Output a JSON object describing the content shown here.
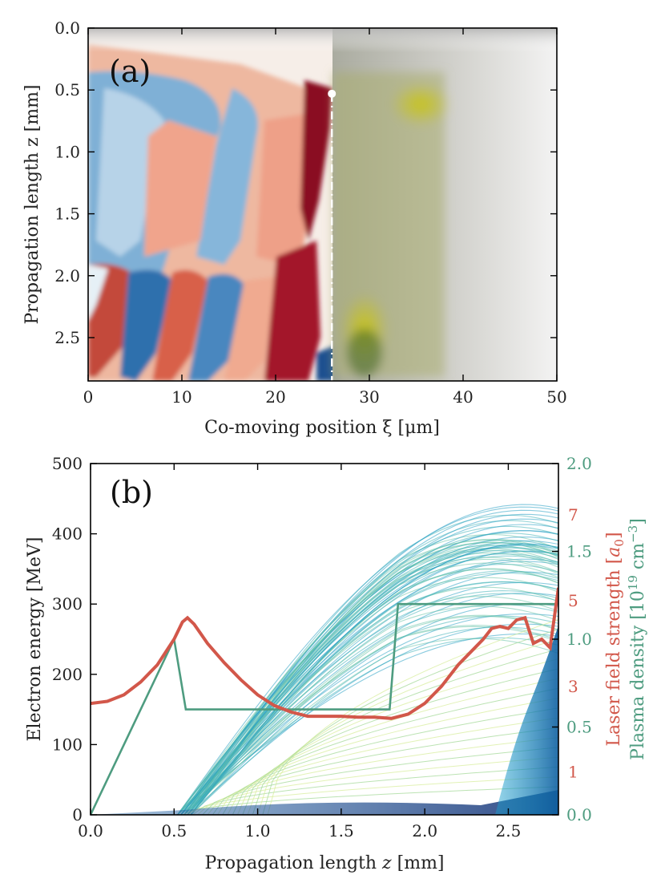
{
  "chart_data": [
    {
      "panel": "(a)",
      "type": "heatmap",
      "xlabel": "Co-moving position ξ [μm]",
      "ylabel": "Propagation length z [mm]",
      "xlim": [
        0,
        50
      ],
      "ylim": [
        2.85,
        0.0
      ],
      "x_ticks": [
        "0",
        "10",
        "20",
        "30",
        "40",
        "50"
      ],
      "y_ticks": [
        "0.0",
        "0.5",
        "1.0",
        "1.5",
        "2.0",
        "2.5"
      ],
      "x_tick_values": [
        0,
        10,
        20,
        30,
        40,
        50
      ],
      "y_tick_values": [
        0.0,
        0.5,
        1.0,
        1.5,
        2.0,
        2.5
      ],
      "injection_marker": {
        "xi": 26,
        "z": 0.53
      },
      "marker_line": {
        "xi": 26,
        "z_from": 0.53,
        "z_to": 2.85
      }
    },
    {
      "panel": "(b)",
      "type": "line",
      "xlabel": "Propagation length z [mm]",
      "ylabel": "Electron energy [MeV]",
      "ylabel_right_laser": "Laser field strength [a0]",
      "ylabel_right_density": "Plasma density [10^19 cm^-3]",
      "xlim": [
        0,
        2.8
      ],
      "ylim": [
        0,
        500
      ],
      "x_ticks": [
        "0.0",
        "0.5",
        "1.0",
        "1.5",
        "2.0",
        "2.5"
      ],
      "x_tick_values": [
        0.0,
        0.5,
        1.0,
        1.5,
        2.0,
        2.5
      ],
      "y_ticks": [
        "0",
        "100",
        "200",
        "300",
        "400",
        "500"
      ],
      "y_tick_values": [
        0,
        100,
        200,
        300,
        400,
        500
      ],
      "density_ticks": [
        "0.0",
        "0.5",
        "1.0",
        "1.5",
        "2.0"
      ],
      "density_tick_values": [
        0.0,
        0.5,
        1.0,
        1.5,
        2.0
      ],
      "density_range": [
        0,
        2.0
      ],
      "laser_ticks": [
        "1",
        "3",
        "5",
        "7"
      ],
      "laser_tick_values": [
        1,
        3,
        5,
        7
      ],
      "laser_range": [
        0,
        8.2
      ],
      "series": [
        {
          "name": "Plasma density",
          "axis": "density",
          "color": "#4e9c80",
          "x": [
            0.0,
            0.5,
            0.57,
            1.79,
            1.84,
            2.8
          ],
          "y": [
            0.0,
            1.0,
            0.6,
            0.6,
            1.2,
            1.2
          ]
        },
        {
          "name": "Laser field strength",
          "axis": "laser",
          "color": "#d2574a",
          "x": [
            0.0,
            0.1,
            0.2,
            0.3,
            0.4,
            0.5,
            0.55,
            0.58,
            0.62,
            0.7,
            0.8,
            0.9,
            1.0,
            1.1,
            1.2,
            1.3,
            1.4,
            1.5,
            1.6,
            1.7,
            1.8,
            1.9,
            2.0,
            2.1,
            2.2,
            2.3,
            2.35,
            2.4,
            2.45,
            2.5,
            2.55,
            2.6,
            2.65,
            2.7,
            2.75,
            2.8
          ],
          "y": [
            2.6,
            2.65,
            2.8,
            3.1,
            3.5,
            4.1,
            4.5,
            4.6,
            4.45,
            4.0,
            3.55,
            3.15,
            2.8,
            2.55,
            2.4,
            2.3,
            2.3,
            2.3,
            2.28,
            2.28,
            2.25,
            2.35,
            2.6,
            3.0,
            3.5,
            3.9,
            4.1,
            4.35,
            4.4,
            4.35,
            4.55,
            4.6,
            4.0,
            4.1,
            3.9,
            5.3
          ]
        }
      ],
      "electron_tracks": {
        "colors": [
          "#2aa0c4",
          "#3fb2b8",
          "#67c3a8",
          "#a6d99a",
          "#d8ed9e"
        ],
        "bulk_color": "#1e4e8c",
        "max_energy_mev": 445,
        "bunch_start_z": 0.52,
        "second_injection_z": 2.3
      }
    }
  ]
}
